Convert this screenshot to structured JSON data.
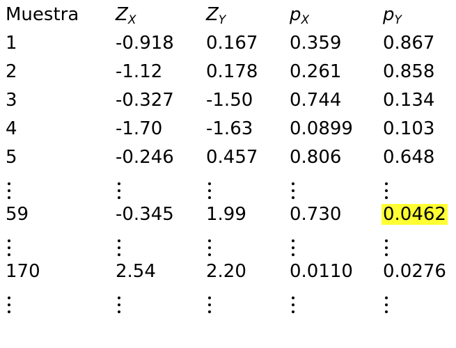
{
  "headers": [
    {
      "base": "Muestra",
      "sub": ""
    },
    {
      "base": "Z",
      "sub": "X"
    },
    {
      "base": "Z",
      "sub": "Y"
    },
    {
      "base": "p",
      "sub": "X"
    },
    {
      "base": "p",
      "sub": "Y"
    }
  ],
  "rows": [
    {
      "type": "data",
      "cells": [
        "1",
        "-0.918",
        "0.167",
        "0.359",
        "0.867"
      ]
    },
    {
      "type": "data",
      "cells": [
        "2",
        "-1.12",
        "0.178",
        "0.261",
        "0.858"
      ]
    },
    {
      "type": "data",
      "cells": [
        "3",
        "-0.327",
        "-1.50",
        "0.744",
        "0.134"
      ]
    },
    {
      "type": "data",
      "cells": [
        "4",
        "-1.70",
        "-1.63",
        "0.0899",
        "0.103"
      ]
    },
    {
      "type": "data",
      "cells": [
        "5",
        "-0.246",
        "0.457",
        "0.806",
        "0.648"
      ]
    },
    {
      "type": "ellipsis"
    },
    {
      "type": "data",
      "cells": [
        "59",
        "-0.345",
        "1.99",
        "0.730",
        "0.0462"
      ],
      "highlight_col": 4
    },
    {
      "type": "ellipsis"
    },
    {
      "type": "data",
      "cells": [
        "170",
        "2.54",
        "2.20",
        "0.0110",
        "0.0276"
      ]
    },
    {
      "type": "ellipsis"
    }
  ],
  "colors": {
    "text": "#000000",
    "highlight": "#ffff33",
    "background": "#ffffff"
  }
}
